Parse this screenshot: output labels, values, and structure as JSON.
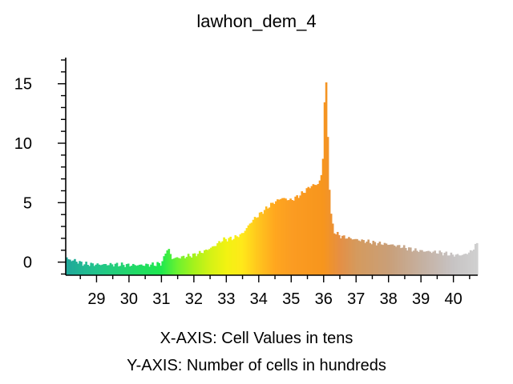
{
  "chart_data": {
    "type": "bar",
    "title": "lawhon_dem_4",
    "xlabel": "X-AXIS: Cell Values in tens",
    "ylabel": "Y-AXIS: Number of cells in hundreds",
    "xlim": [
      28.05,
      40.75
    ],
    "ylim": [
      -1.1,
      17.2
    ],
    "x_ticks": [
      29,
      30,
      31,
      32,
      33,
      34,
      35,
      36,
      37,
      38,
      39,
      40
    ],
    "y_ticks": [
      0,
      5,
      10,
      15
    ],
    "grid": false,
    "legend": "none",
    "profile": [
      [
        28.05,
        0.6
      ],
      [
        28.1,
        0.2
      ],
      [
        28.3,
        0.15
      ],
      [
        28.6,
        -0.15
      ],
      [
        29.0,
        -0.2
      ],
      [
        29.5,
        -0.2
      ],
      [
        30.0,
        -0.25
      ],
      [
        30.4,
        -0.25
      ],
      [
        30.8,
        -0.2
      ],
      [
        31.0,
        -0.1
      ],
      [
        31.1,
        0.5
      ],
      [
        31.15,
        1.1
      ],
      [
        31.25,
        1.0
      ],
      [
        31.3,
        0.3
      ],
      [
        31.6,
        0.4
      ],
      [
        32.0,
        0.6
      ],
      [
        32.3,
        0.9
      ],
      [
        32.6,
        1.3
      ],
      [
        32.9,
        1.9
      ],
      [
        33.2,
        2.0
      ],
      [
        33.5,
        2.4
      ],
      [
        33.8,
        3.5
      ],
      [
        34.1,
        4.2
      ],
      [
        34.4,
        4.9
      ],
      [
        34.7,
        5.4
      ],
      [
        35.0,
        5.2
      ],
      [
        35.3,
        5.7
      ],
      [
        35.6,
        6.4
      ],
      [
        35.85,
        6.6
      ],
      [
        35.95,
        7.5
      ],
      [
        36.0,
        10.0
      ],
      [
        36.05,
        17.0
      ],
      [
        36.1,
        13.0
      ],
      [
        36.15,
        8.0
      ],
      [
        36.2,
        4.5
      ],
      [
        36.3,
        2.6
      ],
      [
        36.5,
        2.2
      ],
      [
        36.8,
        2.0
      ],
      [
        37.2,
        1.8
      ],
      [
        37.6,
        1.6
      ],
      [
        38.0,
        1.5
      ],
      [
        38.4,
        1.3
      ],
      [
        38.8,
        1.0
      ],
      [
        39.2,
        0.9
      ],
      [
        39.6,
        0.8
      ],
      [
        40.0,
        0.6
      ],
      [
        40.3,
        0.6
      ],
      [
        40.55,
        0.9
      ],
      [
        40.7,
        1.5
      ]
    ],
    "bin_width": 0.05,
    "color_stops": [
      [
        28.05,
        "#1fa79a"
      ],
      [
        29.0,
        "#22c48c"
      ],
      [
        30.0,
        "#22d66c"
      ],
      [
        31.0,
        "#1ee84e"
      ],
      [
        31.5,
        "#6df22f"
      ],
      [
        32.0,
        "#a6f21b"
      ],
      [
        32.5,
        "#d3f216"
      ],
      [
        33.0,
        "#f2f212"
      ],
      [
        33.5,
        "#ffe81a"
      ],
      [
        34.0,
        "#ffc41e"
      ],
      [
        34.5,
        "#ffa61f"
      ],
      [
        35.0,
        "#fb9c22"
      ],
      [
        36.0,
        "#f7951d"
      ],
      [
        36.5,
        "#e58f44"
      ],
      [
        37.0,
        "#d59a5d"
      ],
      [
        38.0,
        "#c99f78"
      ],
      [
        39.0,
        "#c5b0a0"
      ],
      [
        40.0,
        "#c7c4c4"
      ],
      [
        40.75,
        "#d0d0d0"
      ]
    ]
  }
}
